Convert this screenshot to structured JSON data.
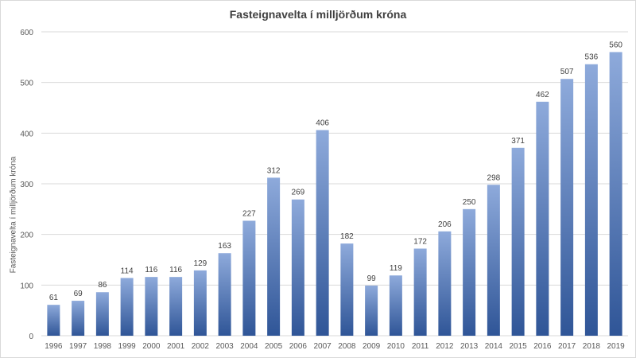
{
  "chart_data": {
    "type": "bar",
    "title": "Fasteignavelta  í milljörðum  króna",
    "ylabel": "Fasteignavelta í milljörðum króna",
    "xlabel": "",
    "ylim": [
      0,
      600
    ],
    "yticks": [
      0,
      100,
      200,
      300,
      400,
      500,
      600
    ],
    "grid": true,
    "legend": "none",
    "colors": {
      "bar_top": "#8eaadb",
      "bar_bottom": "#2f5597",
      "grid": "#d9d9d9"
    },
    "categories": [
      "1996",
      "1997",
      "1998",
      "1999",
      "2000",
      "2001",
      "2002",
      "2003",
      "2004",
      "2005",
      "2006",
      "2007",
      "2008",
      "2009",
      "2010",
      "2011",
      "2012",
      "2013",
      "2014",
      "2015",
      "2016",
      "2017",
      "2018",
      "2019"
    ],
    "values": [
      61,
      69,
      86,
      114,
      116,
      116,
      129,
      163,
      227,
      312,
      269,
      406,
      182,
      99,
      119,
      172,
      206,
      250,
      298,
      371,
      462,
      507,
      536,
      560
    ]
  }
}
